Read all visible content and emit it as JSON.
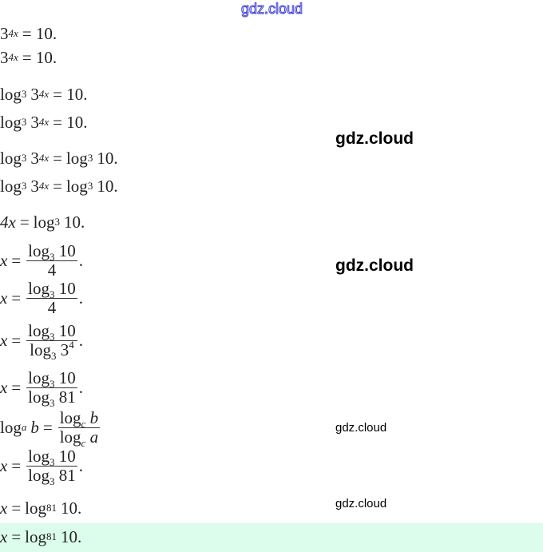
{
  "watermark": "gdz.cloud",
  "highlight_color": "#dcfdeb",
  "lines": [
    {
      "base": "3",
      "sup": "4x",
      "rhs": "= 10."
    },
    {
      "base": "3",
      "sup": "4x",
      "rhs": "= 10."
    },
    {
      "fn": "log",
      "sub": "3",
      "base": "3",
      "sup": "4x",
      "rhs": "= 10."
    },
    {
      "fn": "log",
      "sub": "3",
      "base": "3",
      "sup": "4x",
      "rhs": "= 10."
    },
    {
      "fn": "log",
      "sub": "3",
      "base": "3",
      "sup": "4x",
      "eq": "=",
      "fn2": "log",
      "sub2": "3",
      "arg2": "10."
    },
    {
      "fn": "log",
      "sub": "3",
      "base": "3",
      "sup": "4x",
      "eq": "=",
      "fn2": "log",
      "sub2": "3",
      "arg2": "10."
    },
    {
      "lhs": "4x",
      "eq": "=",
      "fn2": "log",
      "sub2": "3",
      "arg2": "10."
    },
    {
      "lhs": "x",
      "eq": "=",
      "num": {
        "fn": "log",
        "sub": "3",
        "arg": "10"
      },
      "den": "4",
      "end": "."
    },
    {
      "lhs": "x",
      "eq": "=",
      "num": {
        "fn": "log",
        "sub": "3",
        "arg": "10"
      },
      "den": "4",
      "end": "."
    },
    {
      "lhs": "x",
      "eq": "=",
      "num": {
        "fn": "log",
        "sub": "3",
        "arg": "10"
      },
      "den": {
        "fn": "log",
        "sub": "3",
        "arg": "3",
        "sup": "4"
      },
      "end": "."
    },
    {
      "lhs": "x",
      "eq": "=",
      "num": {
        "fn": "log",
        "sub": "3",
        "arg": "10"
      },
      "den": {
        "fn": "log",
        "sub": "3",
        "arg": "81"
      },
      "end": "."
    },
    {
      "fn": "log",
      "sub": "a",
      "arg": "b",
      "eq": "=",
      "num": {
        "fn": "log",
        "sub": "c",
        "arg": "b"
      },
      "den": {
        "fn": "log",
        "sub": "c",
        "arg": "a"
      }
    },
    {
      "lhs": "x",
      "eq": "=",
      "num": {
        "fn": "log",
        "sub": "3",
        "arg": "10"
      },
      "den": {
        "fn": "log",
        "sub": "3",
        "arg": "81"
      },
      "end": "."
    },
    {
      "lhs": "x",
      "eq": "=",
      "fn2": "log",
      "sub2": "81",
      "arg2": "10."
    },
    {
      "lhs": "x",
      "eq": "=",
      "fn2": "log",
      "sub2": "81",
      "arg2": "10."
    }
  ]
}
